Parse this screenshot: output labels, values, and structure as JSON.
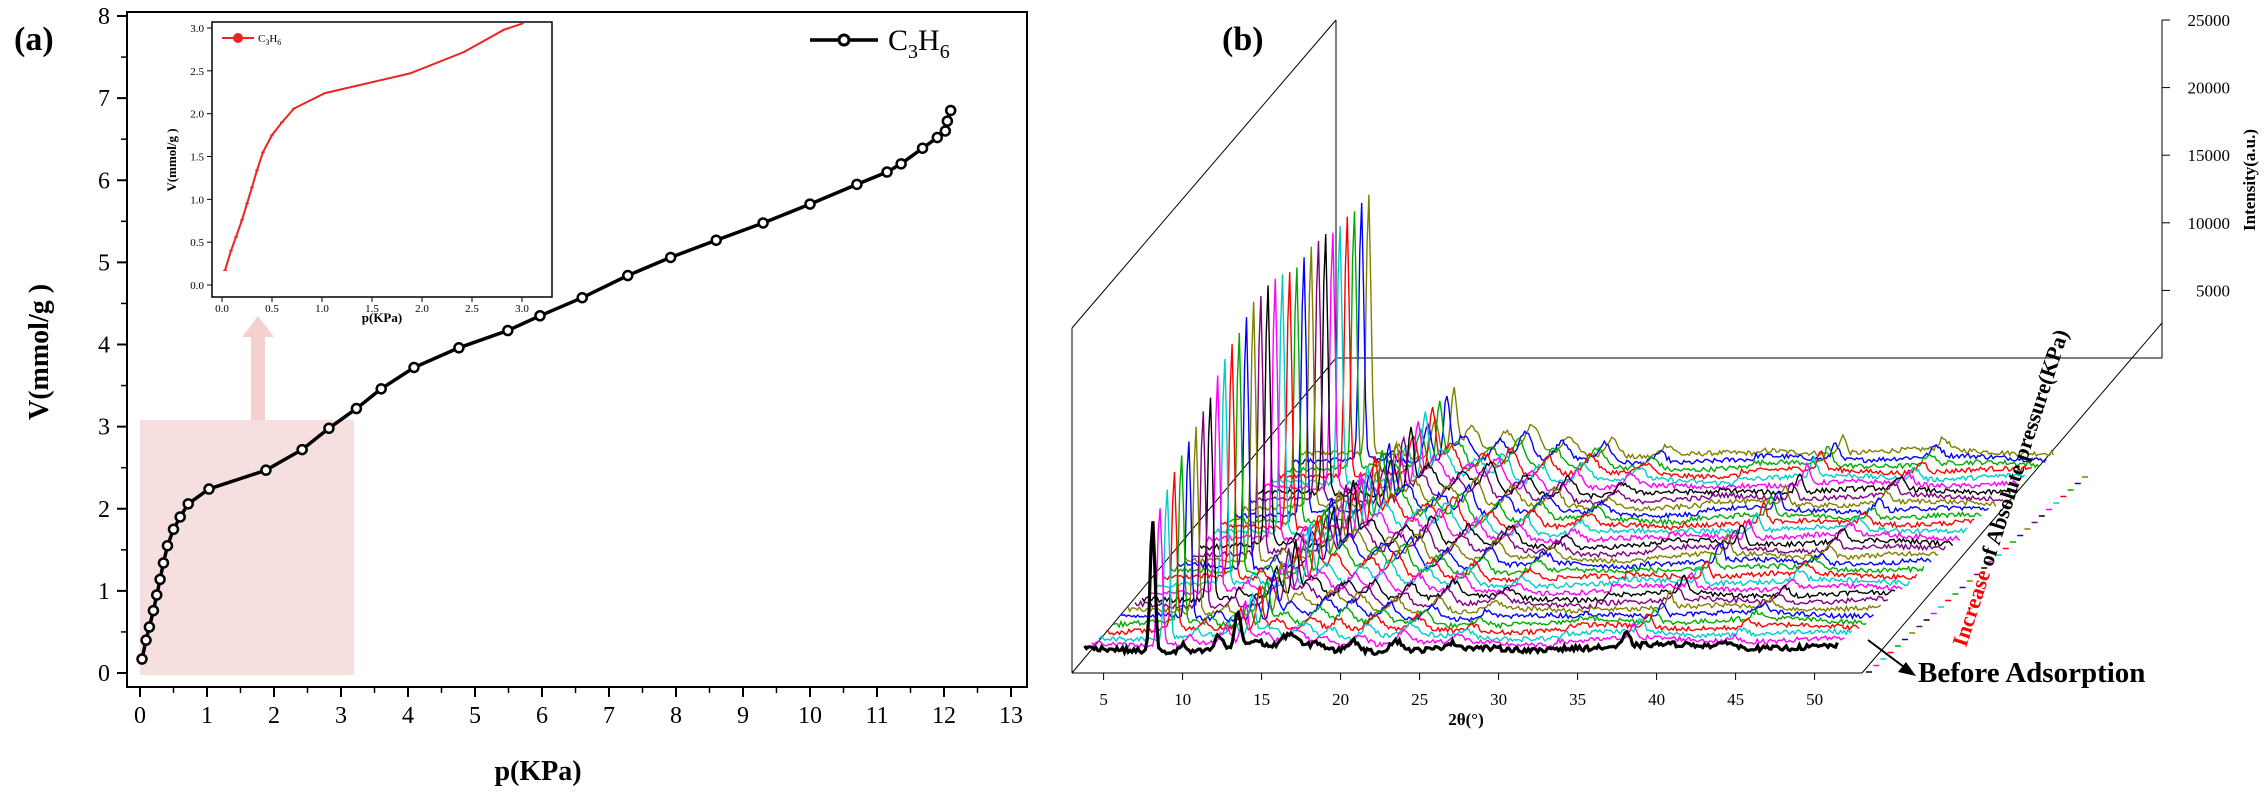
{
  "panel_a": {
    "label": "(a)",
    "inset_legend": "C3H6"
  },
  "panel_b": {
    "label": "(b)",
    "annotation": "Before Adsorption",
    "depth_axis_prefix": "Increase",
    "depth_axis_rest": " of Absolute pressure(KPa)"
  },
  "chart_data": [
    {
      "id": "main_isotherm",
      "type": "line",
      "title": "",
      "xlabel": "p(KPa)",
      "ylabel": "V(mmol/g )",
      "xlim": [
        0,
        13
      ],
      "ylim": [
        0,
        8
      ],
      "x_ticks": [
        "0",
        "1",
        "2",
        "3",
        "4",
        "5",
        "6",
        "7",
        "8",
        "9",
        "10",
        "11",
        "12",
        "13"
      ],
      "y_ticks": [
        "0",
        "1",
        "2",
        "3",
        "4",
        "5",
        "6",
        "7",
        "8"
      ],
      "legend": "top-right",
      "grid": false,
      "series": [
        {
          "name": "C3H6",
          "color": "#000000",
          "x": [
            0.03,
            0.09,
            0.14,
            0.2,
            0.25,
            0.3,
            0.35,
            0.41,
            0.5,
            0.6,
            0.72,
            1.03,
            1.88,
            2.42,
            2.82,
            3.23,
            3.6,
            4.09,
            4.76,
            5.49,
            5.97,
            6.6,
            7.28,
            7.92,
            8.6,
            9.3,
            10.0,
            10.7,
            11.15,
            11.36,
            11.68,
            11.9,
            12.02,
            12.05,
            12.1
          ],
          "y": [
            0.17,
            0.4,
            0.56,
            0.76,
            0.95,
            1.14,
            1.34,
            1.55,
            1.75,
            1.9,
            2.06,
            2.24,
            2.47,
            2.72,
            2.98,
            3.22,
            3.46,
            3.72,
            3.96,
            4.17,
            4.35,
            4.57,
            4.84,
            5.06,
            5.27,
            5.48,
            5.71,
            5.95,
            6.1,
            6.2,
            6.39,
            6.52,
            6.6,
            6.72,
            6.85
          ]
        }
      ]
    },
    {
      "id": "inset_isotherm",
      "type": "line",
      "title": "",
      "xlabel": "p(KPa)",
      "ylabel": "V(mmol/g )",
      "xlim": [
        0,
        3
      ],
      "ylim": [
        0,
        3
      ],
      "x_ticks": [
        "0.0",
        "0.5",
        "1.0",
        "1.5",
        "2.0",
        "2.5",
        "3.0"
      ],
      "y_ticks": [
        "0.0",
        "0.5",
        "1.0",
        "1.5",
        "2.0",
        "2.5",
        "3.0"
      ],
      "legend": "top-left",
      "series": [
        {
          "name": "C3H6",
          "color": "#ee2222",
          "x": [
            0.03,
            0.09,
            0.14,
            0.2,
            0.25,
            0.3,
            0.35,
            0.41,
            0.5,
            0.6,
            0.72,
            1.03,
            1.88,
            2.42,
            2.82,
            3.0
          ],
          "y": [
            0.17,
            0.4,
            0.56,
            0.76,
            0.95,
            1.14,
            1.34,
            1.55,
            1.75,
            1.9,
            2.06,
            2.24,
            2.47,
            2.72,
            2.98,
            3.05
          ]
        }
      ]
    },
    {
      "id": "xrd_waterfall",
      "type": "line",
      "title": "",
      "xlabel": "2θ(°)",
      "zlabel": "Intensity(a.u.)",
      "depth_label": "Increase of Absolute pressure(KPa)",
      "xlim": [
        3,
        53
      ],
      "x_ticks": [
        "5",
        "10",
        "15",
        "20",
        "25",
        "30",
        "35",
        "40",
        "45",
        "50"
      ],
      "z_ticks": [
        "5000",
        "10000",
        "15000",
        "20000",
        "25000"
      ],
      "z_range": [
        0,
        25000
      ],
      "series_count": 31,
      "series_colors": [
        "#000000",
        "#ff00ff",
        "#00cccc",
        "#ff0000",
        "#00aa00",
        "#0000ff",
        "#808000",
        "#800080",
        "#000000",
        "#ff00ff",
        "#00cccc",
        "#ff0000",
        "#00aa00",
        "#0000ff",
        "#808000",
        "#800080",
        "#000000",
        "#ff00ff",
        "#00cccc",
        "#ff0000",
        "#00aa00",
        "#0000ff",
        "#808000",
        "#800080",
        "#000000",
        "#ff00ff",
        "#00cccc",
        "#ff0000",
        "#00aa00",
        "#0000ff",
        "#808000"
      ],
      "peaks": [
        {
          "x": 8.1,
          "base_height": 0.36,
          "final_height": 0.72,
          "width": 0.15
        },
        {
          "x": 10.0,
          "base_height": 0.02,
          "final_height": 0.03,
          "width": 0.2
        },
        {
          "x": 12.3,
          "base_height": 0.04,
          "final_height": 0.1,
          "width": 0.25
        },
        {
          "x": 13.5,
          "base_height": 0.1,
          "final_height": 0.18,
          "width": 0.2
        },
        {
          "x": 14.6,
          "base_height": 0.02,
          "final_height": 0.08,
          "width": 0.5
        },
        {
          "x": 16.8,
          "base_height": 0.04,
          "final_height": 0.06,
          "width": 0.5
        },
        {
          "x": 18.5,
          "base_height": 0.02,
          "final_height": 0.08,
          "width": 0.4
        },
        {
          "x": 20.8,
          "base_height": 0.03,
          "final_height": 0.05,
          "width": 0.4
        },
        {
          "x": 23.5,
          "base_height": 0.03,
          "final_height": 0.05,
          "width": 0.4
        },
        {
          "x": 27.0,
          "base_height": 0.015,
          "final_height": 0.03,
          "width": 0.4
        },
        {
          "x": 38.1,
          "base_height": 0.035,
          "final_height": 0.05,
          "width": 0.2
        },
        {
          "x": 44.5,
          "base_height": 0.015,
          "final_height": 0.03,
          "width": 0.3
        }
      ]
    }
  ]
}
